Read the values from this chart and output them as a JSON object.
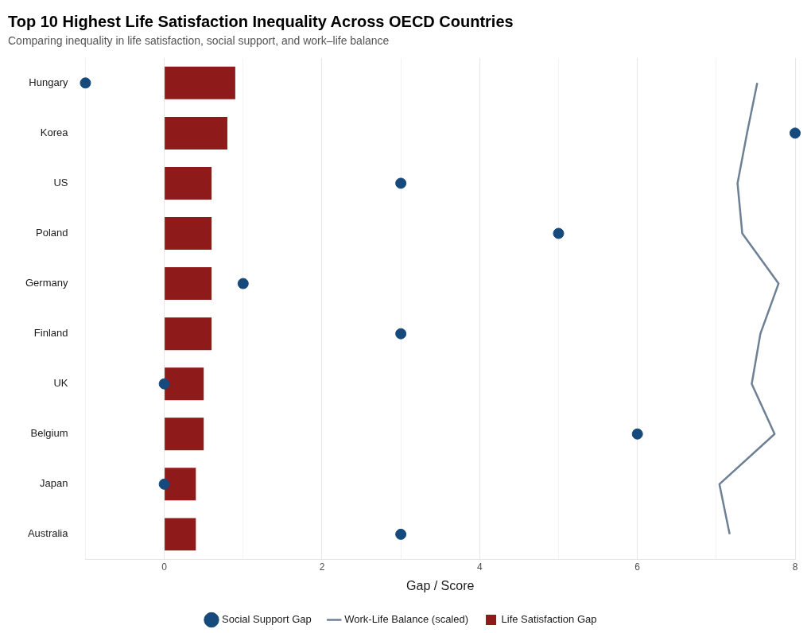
{
  "chart_data": {
    "type": "bar",
    "orientation": "horizontal",
    "title": "Top 10 Highest Life Satisfaction Inequality Across OECD Countries",
    "subtitle": "Comparing inequality in life satisfaction, social support, and work–life balance",
    "xlabel": "Gap / Score",
    "categories": [
      "Hungary",
      "Korea",
      "US",
      "Poland",
      "Germany",
      "Finland",
      "UK",
      "Belgium",
      "Japan",
      "Australia"
    ],
    "series": [
      {
        "name": "Social Support Gap",
        "type": "scatter",
        "marker": "circle",
        "color": "#174a7c",
        "values": [
          -1,
          8,
          3,
          5,
          1,
          3,
          0,
          6,
          0,
          3
        ]
      },
      {
        "name": "Work-Life Balance (scaled)",
        "type": "line",
        "marker": "none",
        "color": "#6e8094",
        "values": [
          7.52,
          7.39,
          7.27,
          7.33,
          7.79,
          7.56,
          7.45,
          7.74,
          7.04,
          7.17
        ]
      },
      {
        "name": "Life Satisfaction Gap",
        "color": "#8f1a1a",
        "values": [
          0.9,
          0.8,
          0.6,
          0.6,
          0.6,
          0.6,
          0.5,
          0.5,
          0.4,
          0.4
        ]
      }
    ],
    "xlim": [
      -1,
      8
    ],
    "xticks": [
      {
        "value": -1,
        "label": null
      },
      0,
      {
        "value": 1,
        "label": null
      },
      2,
      {
        "value": 3,
        "label": null
      },
      4,
      {
        "value": 5,
        "label": null
      },
      6,
      {
        "value": 7,
        "label": null
      },
      8
    ],
    "grid": "x",
    "legend": "bottom"
  }
}
